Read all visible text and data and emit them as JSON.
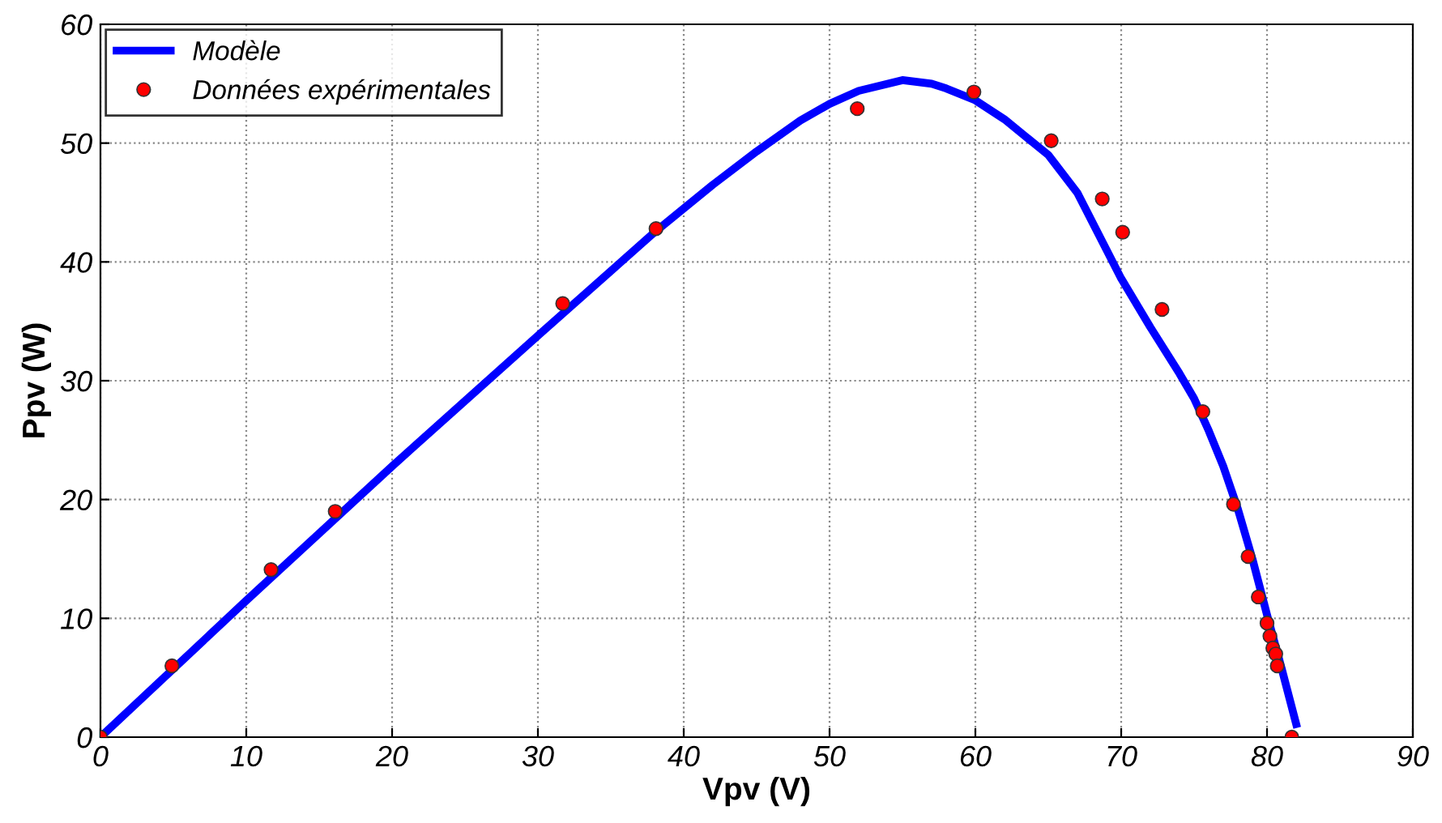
{
  "chart_data": {
    "type": "line",
    "xlabel": "Vpv (V)",
    "ylabel": "Ppv (W)",
    "xlim": [
      0,
      90
    ],
    "ylim": [
      0,
      60
    ],
    "xticks": [
      0,
      10,
      20,
      30,
      40,
      50,
      60,
      70,
      80,
      90
    ],
    "yticks": [
      0,
      10,
      20,
      30,
      40,
      50,
      60
    ],
    "grid": true,
    "legend": "top left",
    "series": [
      {
        "name": "Modèle",
        "color": "#0000ff",
        "marker": "none",
        "line_style": "solid",
        "x": [
          0,
          10,
          20,
          30,
          38,
          42,
          45,
          48,
          50,
          52,
          55,
          57,
          58,
          60,
          62,
          65,
          67,
          70,
          72,
          74,
          75,
          76,
          77,
          78,
          79,
          80,
          81,
          82
        ],
        "values": [
          0,
          11.5,
          22.8,
          33.8,
          42.5,
          46.5,
          49.3,
          51.9,
          53.3,
          54.4,
          55.3,
          55.0,
          54.6,
          53.6,
          52.0,
          49.0,
          45.8,
          38.6,
          34.5,
          30.6,
          28.5,
          25.8,
          22.8,
          19.2,
          15.0,
          10.3,
          5.8,
          1.1
        ]
      },
      {
        "name": "Données expérimentales",
        "type": "scatter",
        "color": "#ff0000",
        "marker": "circle",
        "x": [
          0,
          4.9,
          11.7,
          16.1,
          31.7,
          38.1,
          51.9,
          59.9,
          65.2,
          68.7,
          70.1,
          72.8,
          75.6,
          77.7,
          78.7,
          79.4,
          80.0,
          80.2,
          80.4,
          80.6,
          80.7,
          81.7
        ],
        "values": [
          0,
          6.0,
          14.1,
          19.0,
          36.5,
          42.8,
          52.9,
          54.3,
          50.2,
          45.3,
          42.5,
          36.0,
          27.4,
          19.6,
          15.2,
          11.8,
          9.6,
          8.5,
          7.5,
          7.0,
          6.0,
          0
        ]
      }
    ]
  }
}
